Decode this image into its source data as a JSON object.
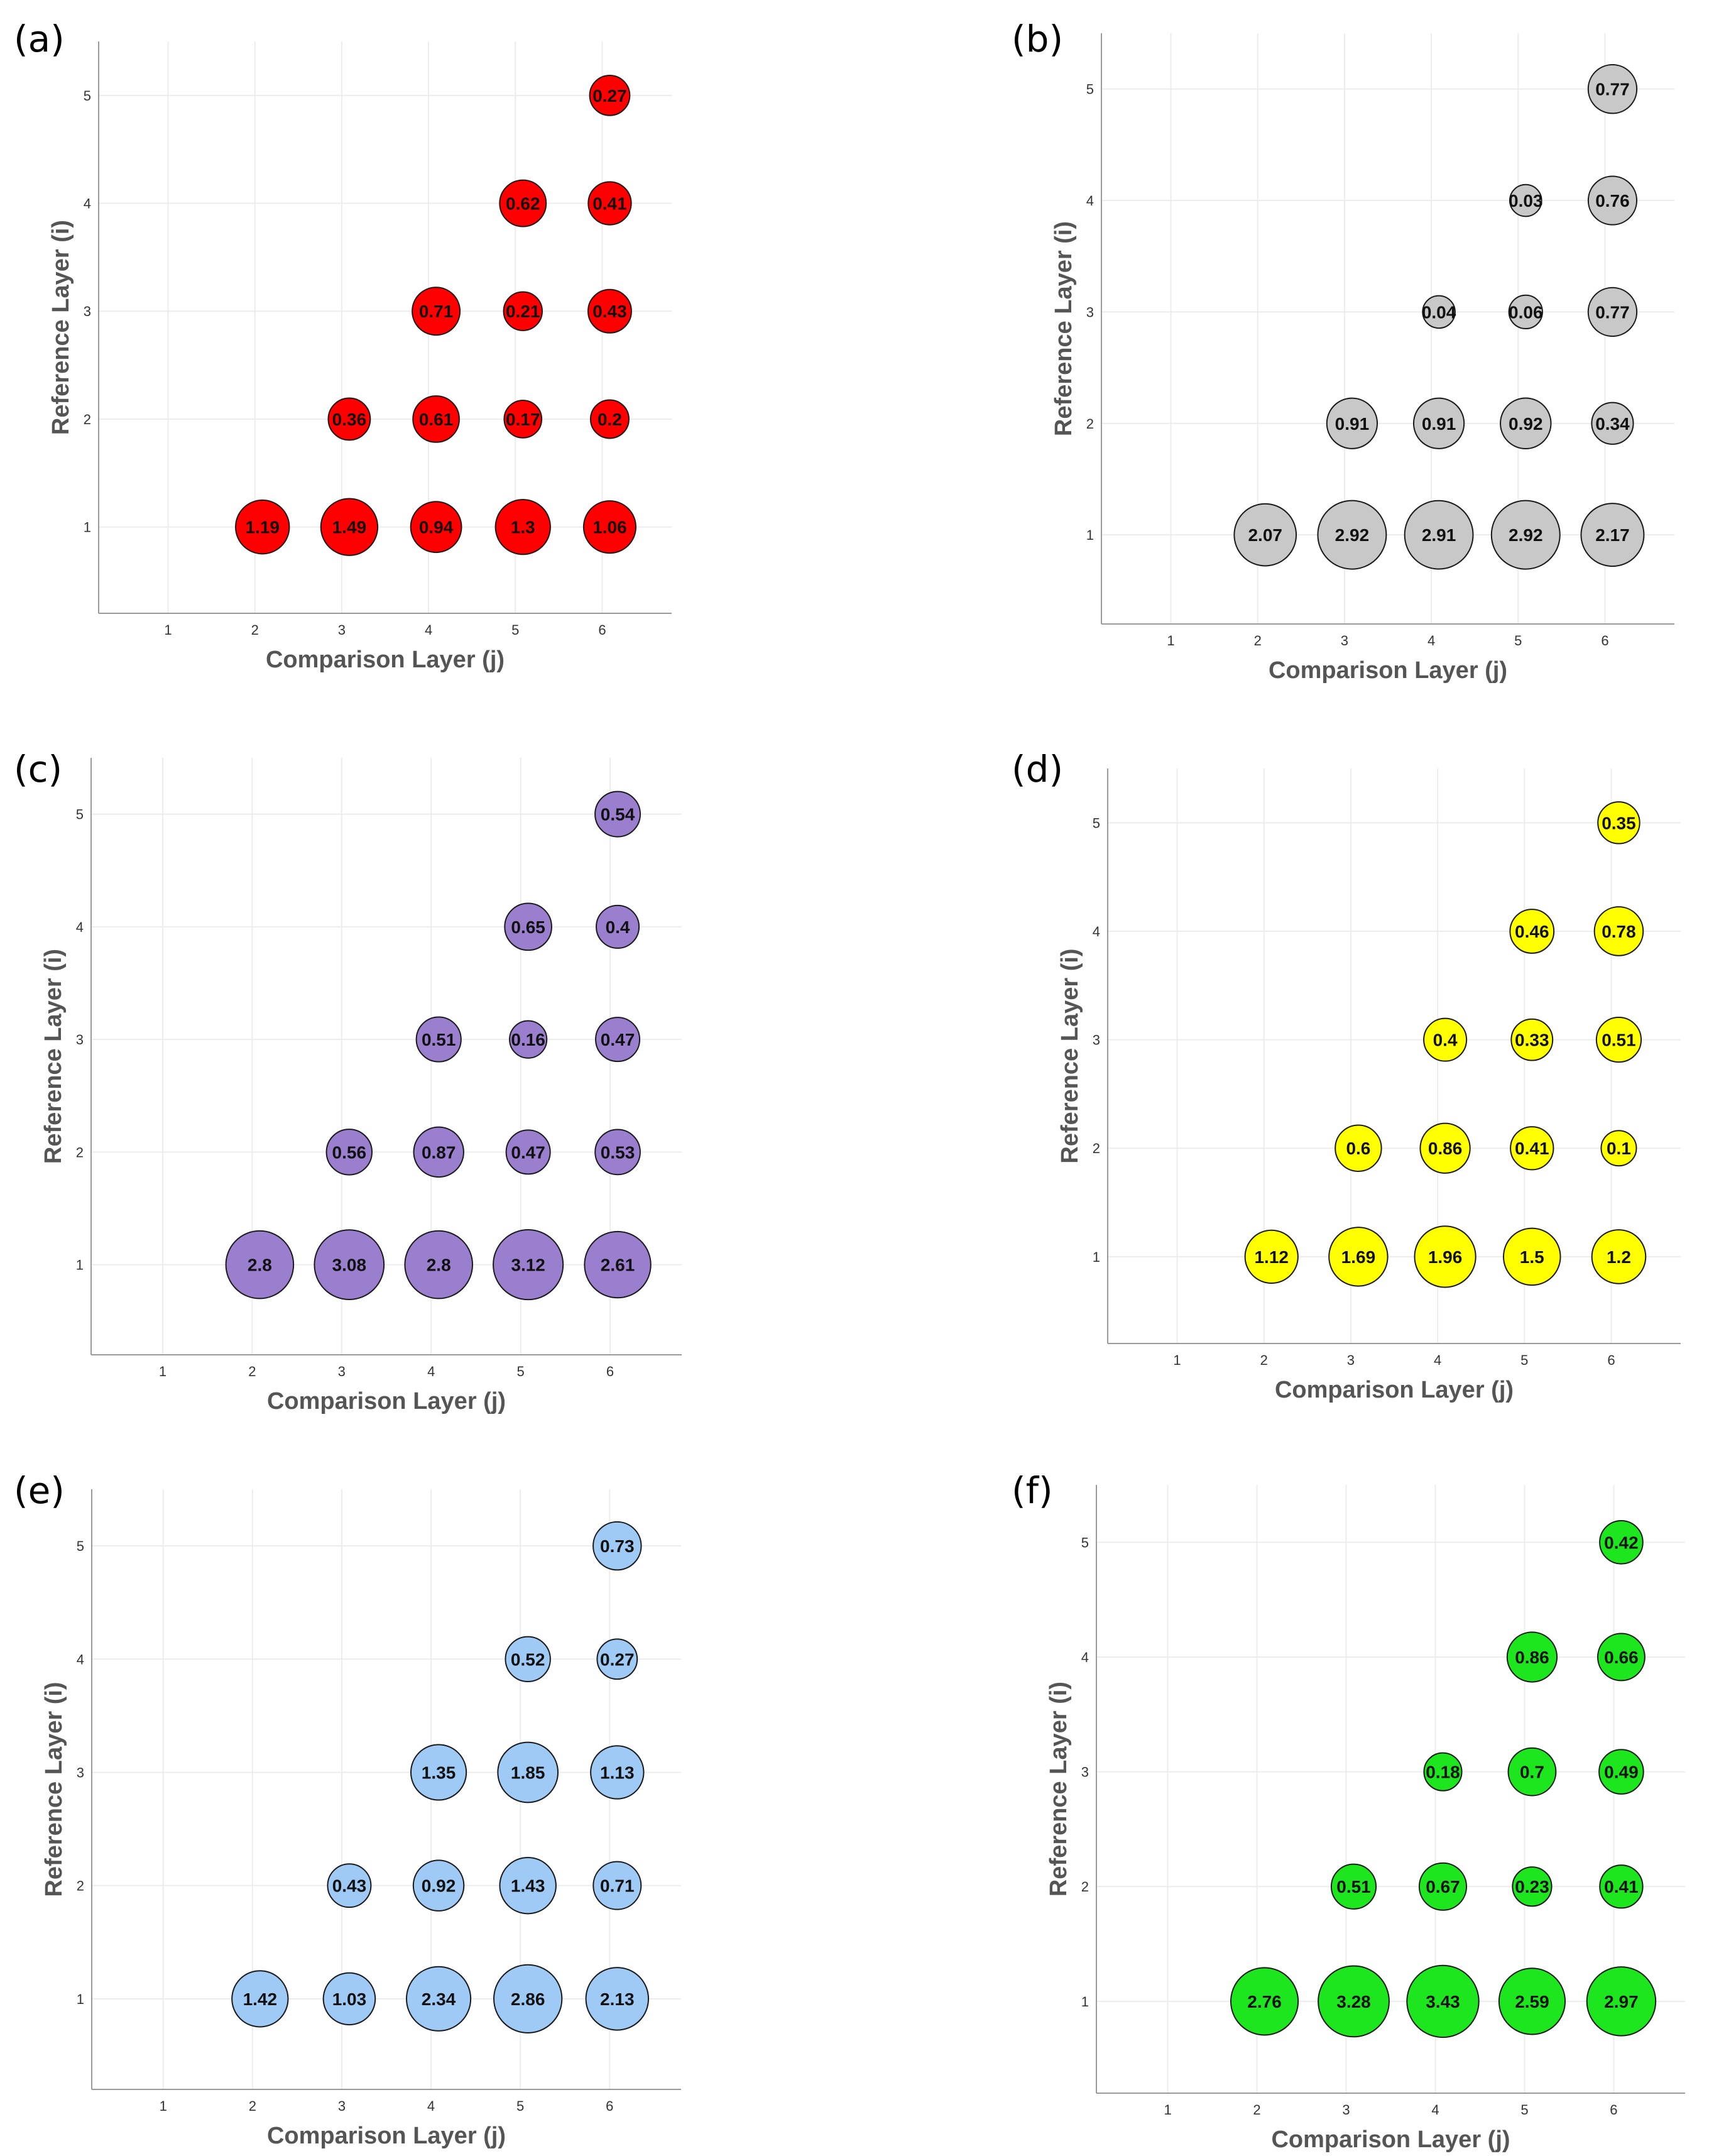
{
  "figure": {
    "panel_labels": [
      "(a)",
      "(b)",
      "(c)",
      "(d)",
      "(e)",
      "(f)"
    ]
  },
  "chart_data": [
    {
      "type": "scatter",
      "panel": "(a)",
      "xlabel": "Comparison Layer (j)",
      "ylabel": "Reference Layer (i)",
      "xticks": [
        1,
        2,
        3,
        4,
        5,
        6
      ],
      "yticks": [
        1,
        2,
        3,
        4,
        5
      ],
      "xlim": [
        0.2,
        6.8
      ],
      "ylim": [
        0.2,
        5.5
      ],
      "grid": true,
      "marker_color": "#ff0000",
      "size_encodes": "label value",
      "points": [
        {
          "x": 2,
          "y": 1,
          "label": "1.19"
        },
        {
          "x": 3,
          "y": 1,
          "label": "1.49"
        },
        {
          "x": 4,
          "y": 1,
          "label": "0.94"
        },
        {
          "x": 5,
          "y": 1,
          "label": "1.3"
        },
        {
          "x": 6,
          "y": 1,
          "label": "1.06"
        },
        {
          "x": 3,
          "y": 2,
          "label": "0.36"
        },
        {
          "x": 4,
          "y": 2,
          "label": "0.61"
        },
        {
          "x": 5,
          "y": 2,
          "label": "0.17"
        },
        {
          "x": 6,
          "y": 2,
          "label": "0.2"
        },
        {
          "x": 4,
          "y": 3,
          "label": "0.71"
        },
        {
          "x": 5,
          "y": 3,
          "label": "0.21"
        },
        {
          "x": 6,
          "y": 3,
          "label": "0.43"
        },
        {
          "x": 5,
          "y": 4,
          "label": "0.62"
        },
        {
          "x": 6,
          "y": 4,
          "label": "0.41"
        },
        {
          "x": 6,
          "y": 5,
          "label": "0.27"
        }
      ]
    },
    {
      "type": "scatter",
      "panel": "(b)",
      "xlabel": "Comparison Layer (j)",
      "ylabel": "Reference Layer (i)",
      "xticks": [
        1,
        2,
        3,
        4,
        5,
        6
      ],
      "yticks": [
        1,
        2,
        3,
        4,
        5
      ],
      "xlim": [
        0.2,
        6.8
      ],
      "ylim": [
        0.2,
        5.5
      ],
      "grid": true,
      "marker_color": "#c8c8c8",
      "size_encodes": "label value",
      "points": [
        {
          "x": 2,
          "y": 1,
          "label": "2.07"
        },
        {
          "x": 3,
          "y": 1,
          "label": "2.92"
        },
        {
          "x": 4,
          "y": 1,
          "label": "2.91"
        },
        {
          "x": 5,
          "y": 1,
          "label": "2.92"
        },
        {
          "x": 6,
          "y": 1,
          "label": "2.17"
        },
        {
          "x": 3,
          "y": 2,
          "label": "0.91"
        },
        {
          "x": 4,
          "y": 2,
          "label": "0.91"
        },
        {
          "x": 5,
          "y": 2,
          "label": "0.92"
        },
        {
          "x": 6,
          "y": 2,
          "label": "0.34"
        },
        {
          "x": 4,
          "y": 3,
          "label": "0.04"
        },
        {
          "x": 5,
          "y": 3,
          "label": "0.06"
        },
        {
          "x": 6,
          "y": 3,
          "label": "0.77"
        },
        {
          "x": 5,
          "y": 4,
          "label": "0.03"
        },
        {
          "x": 6,
          "y": 4,
          "label": "0.76"
        },
        {
          "x": 6,
          "y": 5,
          "label": "0.77"
        }
      ]
    },
    {
      "type": "scatter",
      "panel": "(c)",
      "xlabel": "Comparison Layer (j)",
      "ylabel": "Reference Layer (i)",
      "xticks": [
        1,
        2,
        3,
        4,
        5,
        6
      ],
      "yticks": [
        1,
        2,
        3,
        4,
        5
      ],
      "xlim": [
        0.2,
        6.8
      ],
      "ylim": [
        0.2,
        5.5
      ],
      "grid": true,
      "marker_color": "#9b7fcf",
      "size_encodes": "label value",
      "points": [
        {
          "x": 2,
          "y": 1,
          "label": "2.8"
        },
        {
          "x": 3,
          "y": 1,
          "label": "3.08"
        },
        {
          "x": 4,
          "y": 1,
          "label": "2.8"
        },
        {
          "x": 5,
          "y": 1,
          "label": "3.12"
        },
        {
          "x": 6,
          "y": 1,
          "label": "2.61"
        },
        {
          "x": 3,
          "y": 2,
          "label": "0.56"
        },
        {
          "x": 4,
          "y": 2,
          "label": "0.87"
        },
        {
          "x": 5,
          "y": 2,
          "label": "0.47"
        },
        {
          "x": 6,
          "y": 2,
          "label": "0.53"
        },
        {
          "x": 4,
          "y": 3,
          "label": "0.51"
        },
        {
          "x": 5,
          "y": 3,
          "label": "0.16"
        },
        {
          "x": 6,
          "y": 3,
          "label": "0.47"
        },
        {
          "x": 5,
          "y": 4,
          "label": "0.65"
        },
        {
          "x": 6,
          "y": 4,
          "label": "0.4"
        },
        {
          "x": 6,
          "y": 5,
          "label": "0.54"
        }
      ]
    },
    {
      "type": "scatter",
      "panel": "(d)",
      "xlabel": "Comparison Layer (j)",
      "ylabel": "Reference Layer (i)",
      "xticks": [
        1,
        2,
        3,
        4,
        5,
        6
      ],
      "yticks": [
        1,
        2,
        3,
        4,
        5
      ],
      "xlim": [
        0.2,
        6.8
      ],
      "ylim": [
        0.2,
        5.5
      ],
      "grid": true,
      "marker_color": "#ffff00",
      "size_encodes": "label value",
      "points": [
        {
          "x": 2,
          "y": 1,
          "label": "1.12"
        },
        {
          "x": 3,
          "y": 1,
          "label": "1.69"
        },
        {
          "x": 4,
          "y": 1,
          "label": "1.96"
        },
        {
          "x": 5,
          "y": 1,
          "label": "1.5"
        },
        {
          "x": 6,
          "y": 1,
          "label": "1.2"
        },
        {
          "x": 3,
          "y": 2,
          "label": "0.6"
        },
        {
          "x": 4,
          "y": 2,
          "label": "0.86"
        },
        {
          "x": 5,
          "y": 2,
          "label": "0.41"
        },
        {
          "x": 6,
          "y": 2,
          "label": "0.1"
        },
        {
          "x": 4,
          "y": 3,
          "label": "0.4"
        },
        {
          "x": 5,
          "y": 3,
          "label": "0.33"
        },
        {
          "x": 6,
          "y": 3,
          "label": "0.51"
        },
        {
          "x": 5,
          "y": 4,
          "label": "0.46"
        },
        {
          "x": 6,
          "y": 4,
          "label": "0.78"
        },
        {
          "x": 6,
          "y": 5,
          "label": "0.35"
        }
      ]
    },
    {
      "type": "scatter",
      "panel": "(e)",
      "xlabel": "Comparison Layer (j)",
      "ylabel": "Reference Layer (i)",
      "xticks": [
        1,
        2,
        3,
        4,
        5,
        6
      ],
      "yticks": [
        1,
        2,
        3,
        4,
        5
      ],
      "xlim": [
        0.2,
        6.8
      ],
      "ylim": [
        0.2,
        5.5
      ],
      "grid": true,
      "marker_color": "#9fcaf5",
      "size_encodes": "label value",
      "points": [
        {
          "x": 2,
          "y": 1,
          "label": "1.42"
        },
        {
          "x": 3,
          "y": 1,
          "label": "1.03"
        },
        {
          "x": 4,
          "y": 1,
          "label": "2.34"
        },
        {
          "x": 5,
          "y": 1,
          "label": "2.86"
        },
        {
          "x": 6,
          "y": 1,
          "label": "2.13"
        },
        {
          "x": 3,
          "y": 2,
          "label": "0.43"
        },
        {
          "x": 4,
          "y": 2,
          "label": "0.92"
        },
        {
          "x": 5,
          "y": 2,
          "label": "1.43"
        },
        {
          "x": 6,
          "y": 2,
          "label": "0.71"
        },
        {
          "x": 4,
          "y": 3,
          "label": "1.35"
        },
        {
          "x": 5,
          "y": 3,
          "label": "1.85"
        },
        {
          "x": 6,
          "y": 3,
          "label": "1.13"
        },
        {
          "x": 5,
          "y": 4,
          "label": "0.52"
        },
        {
          "x": 6,
          "y": 4,
          "label": "0.27"
        },
        {
          "x": 6,
          "y": 5,
          "label": "0.73"
        }
      ]
    },
    {
      "type": "scatter",
      "panel": "(f)",
      "xlabel": "Comparison Layer (j)",
      "ylabel": "Reference Layer (i)",
      "xticks": [
        1,
        2,
        3,
        4,
        5,
        6
      ],
      "yticks": [
        1,
        2,
        3,
        4,
        5
      ],
      "xlim": [
        0.2,
        6.8
      ],
      "ylim": [
        0.2,
        5.5
      ],
      "grid": true,
      "marker_color": "#1ee61e",
      "size_encodes": "label value",
      "points": [
        {
          "x": 2,
          "y": 1,
          "label": "2.76"
        },
        {
          "x": 3,
          "y": 1,
          "label": "3.28"
        },
        {
          "x": 4,
          "y": 1,
          "label": "3.43"
        },
        {
          "x": 5,
          "y": 1,
          "label": "2.59"
        },
        {
          "x": 6,
          "y": 1,
          "label": "2.97"
        },
        {
          "x": 3,
          "y": 2,
          "label": "0.51"
        },
        {
          "x": 4,
          "y": 2,
          "label": "0.67"
        },
        {
          "x": 5,
          "y": 2,
          "label": "0.23"
        },
        {
          "x": 6,
          "y": 2,
          "label": "0.41"
        },
        {
          "x": 4,
          "y": 3,
          "label": "0.18"
        },
        {
          "x": 5,
          "y": 3,
          "label": "0.7"
        },
        {
          "x": 6,
          "y": 3,
          "label": "0.49"
        },
        {
          "x": 5,
          "y": 4,
          "label": "0.86"
        },
        {
          "x": 6,
          "y": 4,
          "label": "0.66"
        },
        {
          "x": 6,
          "y": 5,
          "label": "0.42"
        }
      ]
    }
  ]
}
